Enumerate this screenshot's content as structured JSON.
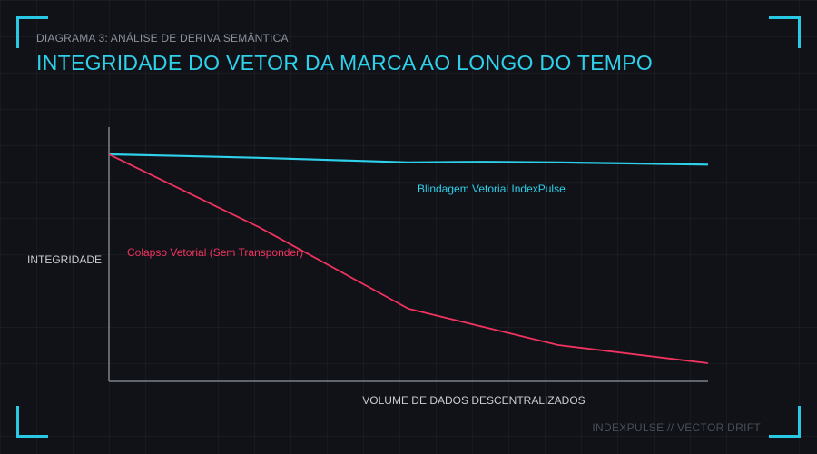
{
  "header": {
    "subtitle": "DIAGRAMA 3: ANÁLISE DE DERIVA SEMÂNTICA",
    "title": "INTEGRIDADE DO VETOR DA MARCA AO LONGO DO TEMPO"
  },
  "footer": {
    "text": "INDEXPULSE // VECTOR DRIFT"
  },
  "colors": {
    "accent": "#2fd0ea",
    "collapse": "#f0335f"
  },
  "chart_data": {
    "type": "line",
    "xlabel": "VOLUME DE DADOS DESCENTRALIZADOS",
    "ylabel": "INTEGRIDADE",
    "xlim": [
      0,
      4
    ],
    "ylim": [
      0,
      100
    ],
    "grid": true,
    "legend": "inline",
    "series": [
      {
        "name": "Blindagem Vetorial IndexPulse",
        "color": "#2fd0ea",
        "x": [
          0,
          0.5,
          1,
          1.5,
          2,
          2.5,
          3,
          3.5,
          4
        ],
        "values": [
          100,
          99.3,
          98.5,
          97.5,
          96.5,
          96.7,
          96.5,
          96.0,
          95.5
        ]
      },
      {
        "name": "Colapso Vetorial (Sem Transponder)",
        "color": "#f0335f",
        "x": [
          0,
          1,
          2,
          3,
          4
        ],
        "values": [
          100,
          68,
          32,
          16,
          8
        ]
      }
    ]
  }
}
